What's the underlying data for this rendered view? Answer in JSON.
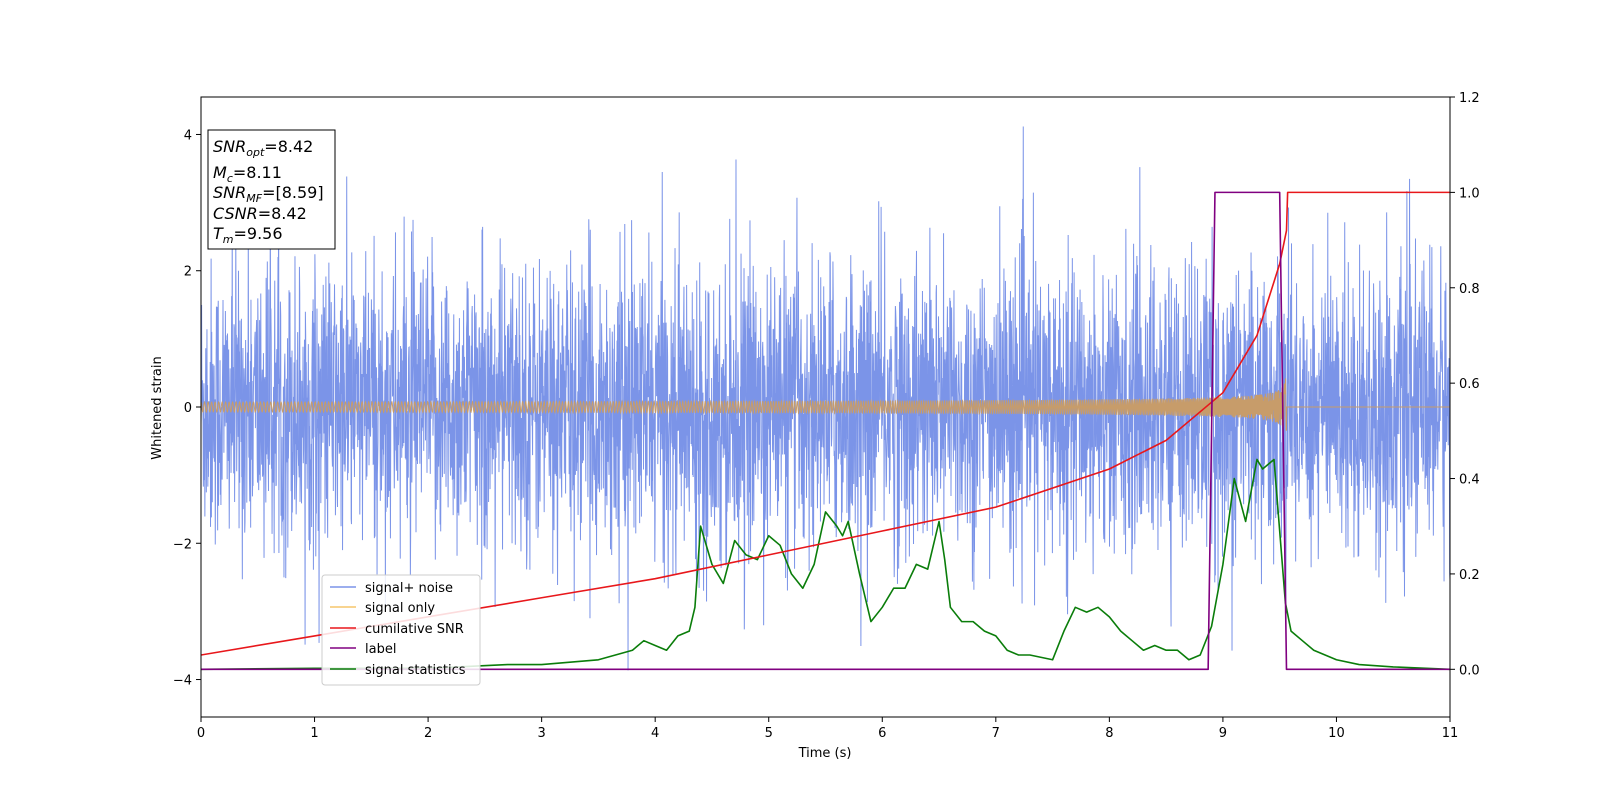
{
  "chart_data": {
    "type": "line",
    "xlabel": "Time (s)",
    "ylabel": "Whitened strain",
    "xlim": [
      0,
      11
    ],
    "ylim_left": [
      -4.55,
      4.55
    ],
    "ylim_right": [
      -0.1,
      1.2
    ],
    "x_ticks": [
      0,
      1,
      2,
      3,
      4,
      5,
      6,
      7,
      8,
      9,
      10,
      11
    ],
    "y_ticks_left": [
      -4,
      -2,
      0,
      2,
      4
    ],
    "y_ticks_right": [
      "0.0",
      "0.2",
      "0.4",
      "0.6",
      "0.8",
      "1.0",
      "1.2"
    ],
    "legend_position": "lower-left",
    "annotation_box": {
      "lines": [
        {
          "base": "SNR",
          "sub": "opt",
          "value": "=8.42"
        },
        {
          "base": "M",
          "sub": "c",
          "value": "=8.11"
        },
        {
          "base": "SNR",
          "sub": "MF",
          "value": "=[8.59]"
        },
        {
          "base": "CSNR",
          "sub": "",
          "value": "=8.42"
        },
        {
          "base": "T",
          "sub": "m",
          "value": "=9.56"
        }
      ]
    },
    "series": [
      {
        "name": "signal+ noise",
        "color": "#7b94e8",
        "axis": "left",
        "description": "gaussian noise ~ sigma 1 plus chirp"
      },
      {
        "name": "signal only",
        "color": "#f5c66c",
        "axis": "left",
        "description": "chirp growing until merger at 9.56 s"
      },
      {
        "name": "cumilative SNR",
        "color": "#e8171b",
        "axis": "right",
        "x": [
          0,
          1,
          2,
          3,
          4,
          5,
          6,
          7,
          8,
          8.5,
          9,
          9.3,
          9.5,
          9.56,
          9.57,
          11
        ],
        "values": [
          0.03,
          0.07,
          0.11,
          0.15,
          0.19,
          0.24,
          0.29,
          0.34,
          0.42,
          0.48,
          0.58,
          0.7,
          0.85,
          0.92,
          1.0,
          1.0
        ]
      },
      {
        "name": "label",
        "color": "#800080",
        "axis": "right",
        "x": [
          0,
          8.87,
          8.93,
          9.5,
          9.56,
          11
        ],
        "values": [
          0,
          0,
          1,
          1,
          0,
          0
        ]
      },
      {
        "name": "signal statistics",
        "color": "#0a7d0a",
        "axis": "right",
        "x": [
          0,
          1,
          2,
          2.7,
          3.0,
          3.5,
          3.8,
          3.9,
          4.0,
          4.1,
          4.2,
          4.3,
          4.35,
          4.4,
          4.5,
          4.6,
          4.7,
          4.8,
          4.9,
          5.0,
          5.1,
          5.2,
          5.3,
          5.4,
          5.5,
          5.6,
          5.65,
          5.7,
          5.8,
          5.9,
          6.0,
          6.1,
          6.2,
          6.3,
          6.4,
          6.5,
          6.55,
          6.6,
          6.7,
          6.8,
          6.9,
          7.0,
          7.1,
          7.2,
          7.3,
          7.5,
          7.6,
          7.7,
          7.8,
          7.9,
          8.0,
          8.1,
          8.2,
          8.3,
          8.4,
          8.5,
          8.6,
          8.7,
          8.8,
          8.9,
          9.0,
          9.1,
          9.2,
          9.3,
          9.35,
          9.45,
          9.55,
          9.6,
          9.7,
          9.8,
          9.9,
          10.0,
          10.2,
          10.5,
          11
        ],
        "values": [
          0,
          0.002,
          0.002,
          0.01,
          0.01,
          0.02,
          0.04,
          0.06,
          0.05,
          0.04,
          0.07,
          0.08,
          0.13,
          0.3,
          0.22,
          0.18,
          0.27,
          0.24,
          0.23,
          0.28,
          0.26,
          0.2,
          0.17,
          0.22,
          0.33,
          0.3,
          0.28,
          0.31,
          0.2,
          0.1,
          0.13,
          0.17,
          0.17,
          0.22,
          0.21,
          0.31,
          0.23,
          0.13,
          0.1,
          0.1,
          0.08,
          0.07,
          0.04,
          0.03,
          0.03,
          0.02,
          0.08,
          0.13,
          0.12,
          0.13,
          0.11,
          0.08,
          0.06,
          0.04,
          0.05,
          0.04,
          0.04,
          0.02,
          0.03,
          0.09,
          0.22,
          0.4,
          0.31,
          0.44,
          0.42,
          0.44,
          0.14,
          0.08,
          0.06,
          0.04,
          0.03,
          0.02,
          0.01,
          0.005,
          0
        ]
      }
    ]
  }
}
